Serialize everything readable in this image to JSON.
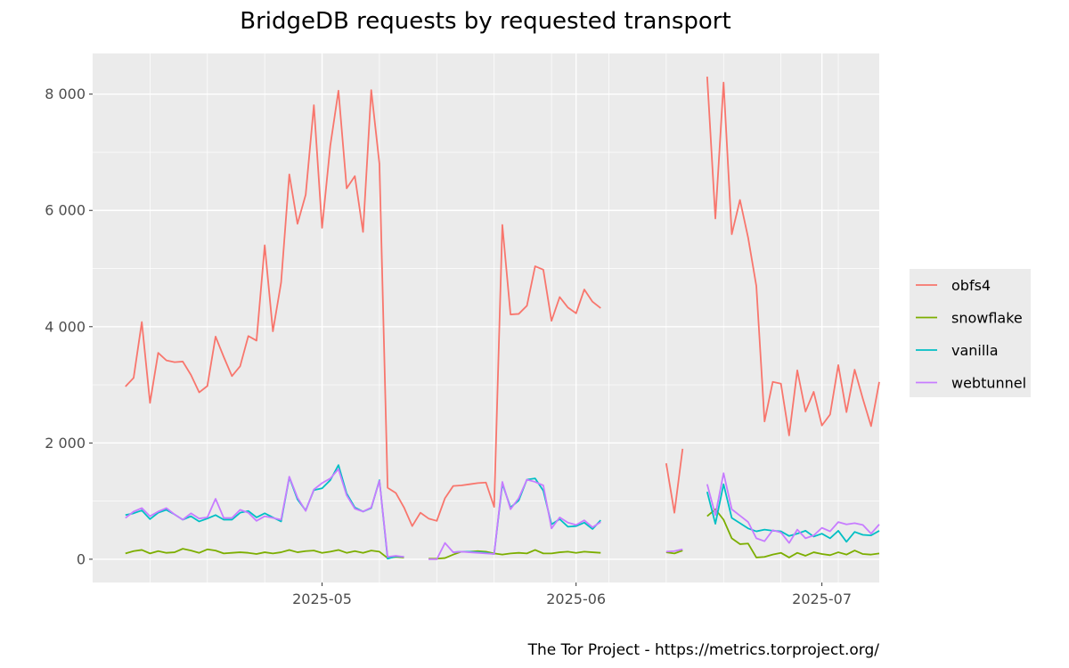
{
  "chart_data": {
    "type": "line",
    "title": "BridgeDB requests by requested transport",
    "caption": "The Tor Project - https://metrics.torproject.org/",
    "xlabel": "",
    "ylabel": "",
    "x_start": "2025-04-07",
    "xlim": [
      "2025-04-03",
      "2025-07-08"
    ],
    "ylim": [
      -400,
      8700
    ],
    "x_ticks": [
      {
        "date": "2025-05-01",
        "label": "2025-05"
      },
      {
        "date": "2025-06-01",
        "label": "2025-06"
      },
      {
        "date": "2025-07-01",
        "label": "2025-07"
      }
    ],
    "y_ticks": [
      {
        "value": 0,
        "label": "0"
      },
      {
        "value": 2000,
        "label": "2 000"
      },
      {
        "value": 4000,
        "label": "4 000"
      },
      {
        "value": 6000,
        "label": "6 000"
      },
      {
        "value": 8000,
        "label": "8 000"
      }
    ],
    "grid": true,
    "legend_position": "right",
    "series": [
      {
        "name": "obfs4",
        "color": "#F8766D",
        "values": [
          2970,
          3120,
          4080,
          2690,
          3550,
          3420,
          3390,
          3400,
          3170,
          2870,
          2980,
          3830,
          3480,
          3150,
          3320,
          3840,
          3760,
          5400,
          3920,
          4760,
          6620,
          5770,
          6270,
          7810,
          5700,
          7110,
          8060,
          6380,
          6590,
          5630,
          8070,
          6800,
          1230,
          1140,
          890,
          570,
          800,
          700,
          660,
          1050,
          1260,
          1270,
          1290,
          1310,
          1320,
          900,
          5750,
          4210,
          4220,
          4360,
          5040,
          4980,
          4100,
          4510,
          4330,
          4230,
          4640,
          4430,
          4320,
          null,
          null,
          null,
          null,
          null,
          null,
          null,
          1650,
          800,
          1900,
          null,
          null,
          8300,
          5860,
          8200,
          5590,
          6180,
          5530,
          4700,
          2370,
          3050,
          3020,
          2130,
          3250,
          2540,
          2880,
          2300,
          2490,
          3340,
          2530,
          3260,
          2760,
          2290,
          3050
        ]
      },
      {
        "name": "snowflake",
        "color": "#7CAE00",
        "values": [
          100,
          140,
          160,
          100,
          140,
          110,
          120,
          180,
          150,
          110,
          170,
          150,
          100,
          110,
          120,
          110,
          90,
          120,
          100,
          120,
          160,
          120,
          140,
          150,
          110,
          130,
          160,
          110,
          140,
          110,
          150,
          130,
          20,
          40,
          30,
          null,
          null,
          10,
          10,
          20,
          80,
          130,
          130,
          140,
          130,
          100,
          80,
          100,
          110,
          100,
          160,
          100,
          100,
          120,
          130,
          110,
          130,
          120,
          110,
          null,
          null,
          null,
          null,
          null,
          null,
          null,
          120,
          100,
          150,
          null,
          null,
          740,
          860,
          680,
          360,
          260,
          270,
          30,
          40,
          80,
          110,
          30,
          110,
          60,
          120,
          90,
          70,
          120,
          80,
          150,
          90,
          80,
          100
        ]
      },
      {
        "name": "vanilla",
        "color": "#00BFC4",
        "values": [
          760,
          790,
          840,
          690,
          800,
          850,
          770,
          680,
          740,
          650,
          700,
          760,
          680,
          680,
          800,
          830,
          720,
          790,
          720,
          650,
          1410,
          1030,
          840,
          1190,
          1220,
          1360,
          1620,
          1130,
          890,
          820,
          880,
          1360,
          10,
          50,
          40,
          null,
          null,
          null,
          null,
          null,
          120,
          130,
          130,
          120,
          110,
          90,
          1300,
          890,
          1010,
          1370,
          1390,
          1180,
          600,
          690,
          560,
          570,
          630,
          520,
          670,
          null,
          null,
          null,
          null,
          null,
          null,
          null,
          null,
          null,
          null,
          null,
          null,
          1160,
          610,
          1290,
          710,
          620,
          530,
          480,
          510,
          490,
          480,
          400,
          440,
          490,
          390,
          440,
          360,
          490,
          300,
          470,
          420,
          410,
          490
        ]
      },
      {
        "name": "webtunnel",
        "color": "#C77CFF",
        "values": [
          710,
          820,
          880,
          740,
          820,
          880,
          770,
          680,
          790,
          700,
          720,
          1040,
          710,
          710,
          850,
          800,
          660,
          740,
          710,
          680,
          1420,
          1060,
          830,
          1200,
          1310,
          1390,
          1550,
          1100,
          870,
          820,
          890,
          1350,
          40,
          60,
          40,
          null,
          null,
          0,
          0,
          280,
          120,
          130,
          120,
          110,
          100,
          90,
          1330,
          860,
          1050,
          1370,
          1330,
          1270,
          530,
          720,
          630,
          590,
          670,
          550,
          640,
          null,
          null,
          null,
          null,
          null,
          null,
          null,
          130,
          140,
          170,
          null,
          null,
          1290,
          760,
          1480,
          860,
          750,
          640,
          360,
          310,
          500,
          460,
          280,
          510,
          360,
          410,
          540,
          480,
          640,
          600,
          620,
          590,
          440,
          600
        ]
      }
    ]
  }
}
